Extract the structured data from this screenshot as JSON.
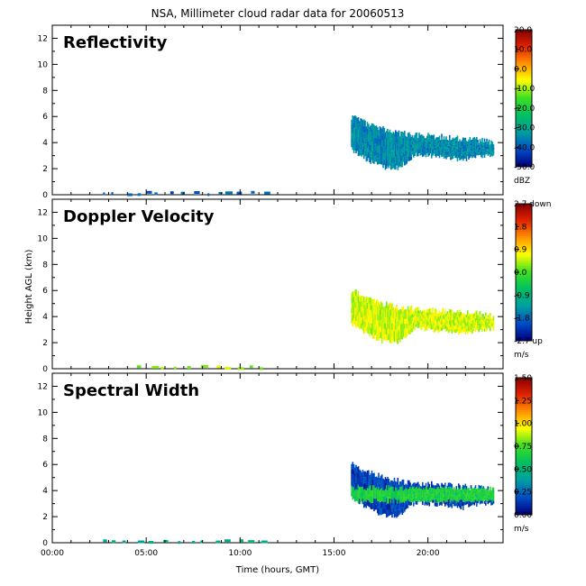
{
  "title": "NSA, Millimeter cloud radar data for 20060513",
  "xlabel": "Time (hours, GMT)",
  "ylabel": "Height AGL (km)",
  "x_ticks": [
    "00:00",
    "05:00",
    "10:00",
    "15:00",
    "20:00"
  ],
  "y_ticks": [
    "0",
    "2",
    "4",
    "6",
    "8",
    "10",
    "12"
  ],
  "panels": [
    {
      "title": "Reflectivity",
      "colorbar_ticks": [
        "20.0",
        "10.0",
        "0.0",
        "-10.0",
        "-20.0",
        "-30.0",
        "-40.0",
        "-50.0"
      ],
      "unit": "dBZ"
    },
    {
      "title": "Doppler Velocity",
      "colorbar_ticks": [
        "2.7 down",
        "1.8",
        "0.9",
        "0.0",
        "-0.9",
        "-1.8",
        "-2.7 up"
      ],
      "unit": "m/s"
    },
    {
      "title": "Spectral Width",
      "colorbar_ticks": [
        "1.50",
        "1.25",
        "1.00",
        "0.75",
        "0.50",
        "0.25",
        "0.00"
      ],
      "unit": "m/s"
    }
  ],
  "chart_data": {
    "type": "heatmap",
    "x_range_hours": [
      0,
      24
    ],
    "y_range_km": [
      0,
      13
    ],
    "colormap": [
      "#000080",
      "#0050c8",
      "#00a0a0",
      "#00c060",
      "#40e020",
      "#ffff00",
      "#ff9000",
      "#e02000",
      "#800000"
    ],
    "panels": [
      {
        "name": "Reflectivity",
        "unit": "dBZ",
        "range": [
          -50,
          20
        ],
        "ylim": [
          0,
          13
        ],
        "cloud": {
          "start_h": 15.9,
          "end_h": 23.5,
          "top_km": [
            6.0,
            5.4,
            5.0,
            4.7,
            4.6,
            4.5,
            4.4,
            4.3,
            4.2,
            4.0
          ],
          "base_km": [
            3.4,
            2.6,
            2.0,
            2.0,
            3.0,
            2.9,
            2.8,
            2.6,
            2.9,
            3.0
          ],
          "typical": -35
        },
        "surface": {
          "start_h": 2.7,
          "end_h": 11.4,
          "top_km": 0.2,
          "typical": -40
        }
      },
      {
        "name": "Doppler Velocity",
        "unit": "m/s",
        "range": [
          -2.7,
          2.7
        ],
        "ylim": [
          0,
          13
        ],
        "cloud": {
          "start_h": 15.9,
          "end_h": 23.5,
          "top_km": [
            6.0,
            5.4,
            5.0,
            4.7,
            4.6,
            4.5,
            4.4,
            4.3,
            4.2,
            4.0
          ],
          "base_km": [
            3.4,
            2.6,
            2.0,
            2.0,
            3.0,
            2.9,
            2.8,
            2.6,
            2.9,
            3.0
          ],
          "typical": 0.5
        },
        "surface": {
          "start_h": 4.5,
          "end_h": 11.4,
          "top_km": 0.2,
          "typical": 0.3
        }
      },
      {
        "name": "Spectral Width",
        "unit": "m/s",
        "range": [
          0.0,
          1.5
        ],
        "ylim": [
          0,
          13
        ],
        "cloud": {
          "start_h": 15.9,
          "end_h": 23.5,
          "top_km": [
            6.0,
            5.4,
            5.0,
            4.7,
            4.6,
            4.5,
            4.4,
            4.3,
            4.2,
            4.0
          ],
          "base_km": [
            3.4,
            2.6,
            2.0,
            2.0,
            3.0,
            2.9,
            2.8,
            2.6,
            2.9,
            3.0
          ],
          "typical": 0.15,
          "band_km": 3.7,
          "band_value": 0.65
        },
        "surface": {
          "start_h": 2.7,
          "end_h": 11.4,
          "top_km": 0.2,
          "typical": 0.45
        }
      }
    ]
  }
}
